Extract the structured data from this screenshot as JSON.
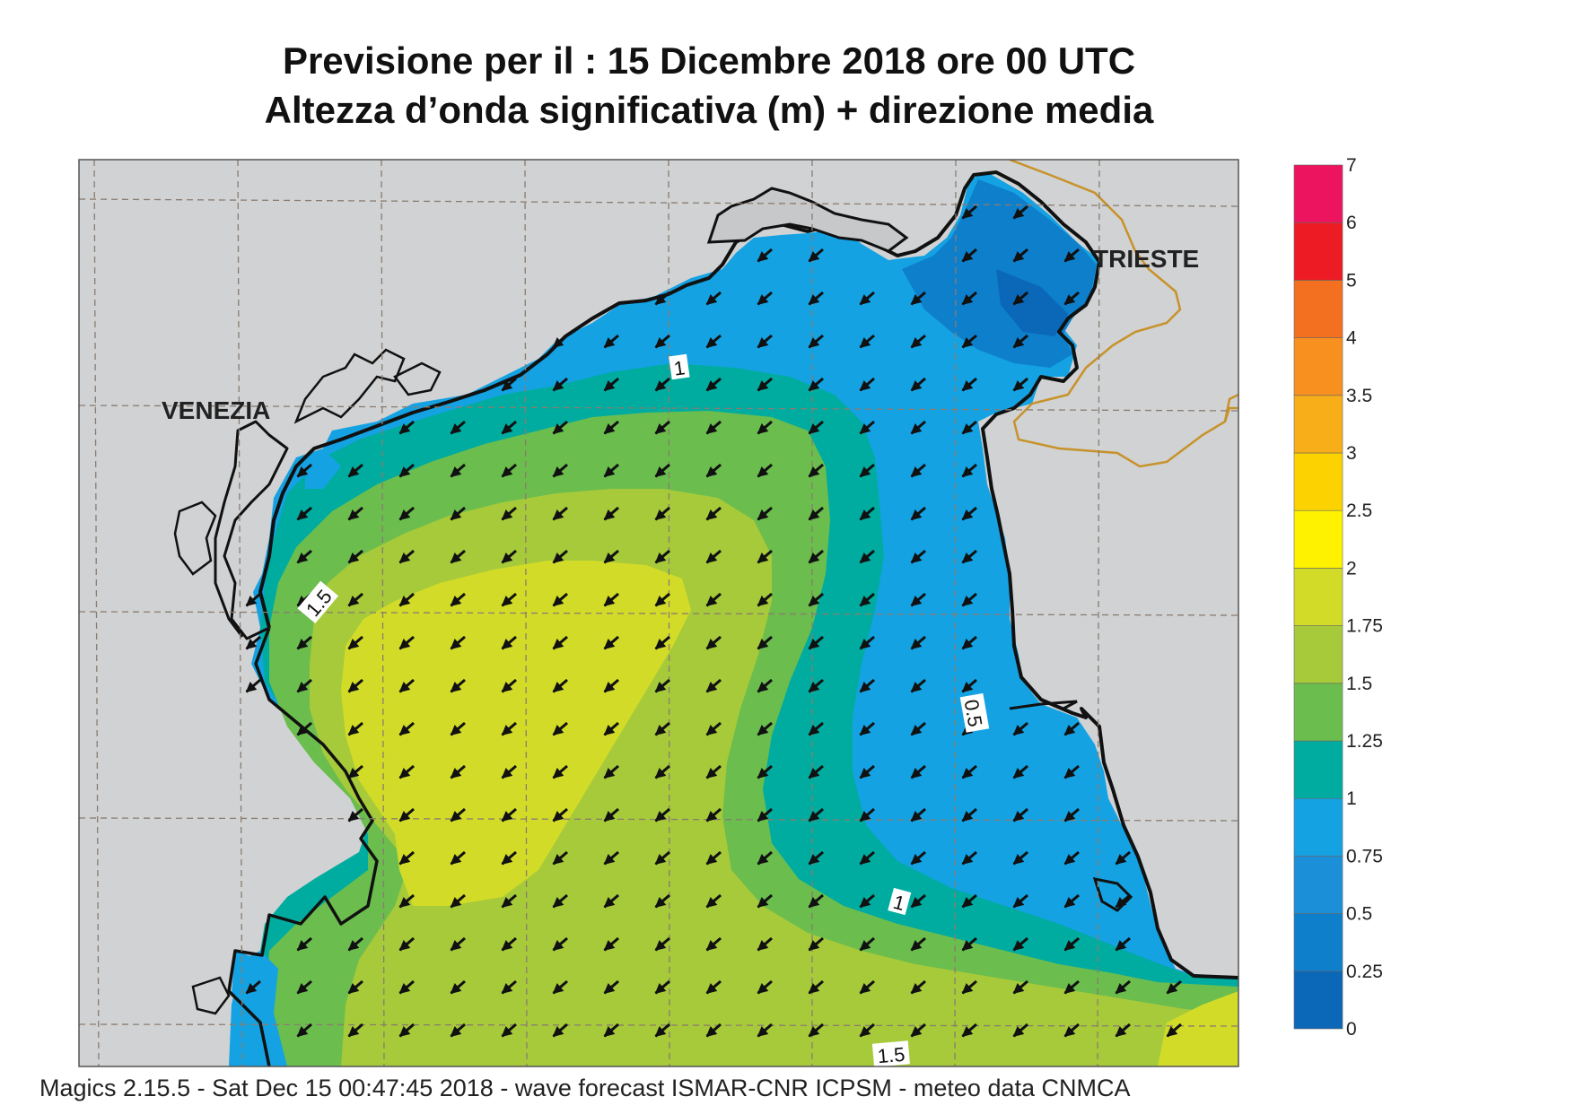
{
  "title": {
    "line1": "Previsione per il  :  15 Dicembre  2018   ore 00 UTC",
    "line2": "Altezza d’onda significativa (m) + direzione media"
  },
  "footer": "Magics 2.15.5 - Sat Dec 15 00:47:45 2018 - wave forecast  ISMAR-CNR  ICPSM - meteo data   CNMCA",
  "places": {
    "venezia": "VENEZIA",
    "trieste": "TRIESTE"
  },
  "contour_labels": {
    "c1_north": "1",
    "c15_west": "1.5",
    "c05_east": "0.5",
    "c1_south": "1",
    "c15_south": "1.5"
  },
  "legend": {
    "levels": [
      "0",
      "0.25",
      "0.5",
      "0.75",
      "1",
      "1.25",
      "1.5",
      "1.75",
      "2",
      "2.5",
      "3",
      "3.5",
      "4",
      "5",
      "6",
      "7"
    ],
    "colors": [
      "#0b67b7",
      "#0e7fcb",
      "#1b90d8",
      "#14a2e3",
      "#00aca0",
      "#6bbd4e",
      "#a6ca3a",
      "#d2dc28",
      "#fff200",
      "#fcd300",
      "#f8ae18",
      "#f7901e",
      "#f37021",
      "#ed1c24",
      "#ec145f"
    ]
  },
  "colors": {
    "land": "#d0d2d3",
    "lagoon": "#c7c8ca",
    "coast": "#111111",
    "border": "#c8922a",
    "grid": "#8a7c70",
    "arrow": "#111111"
  },
  "wave_direction": "south-west"
}
